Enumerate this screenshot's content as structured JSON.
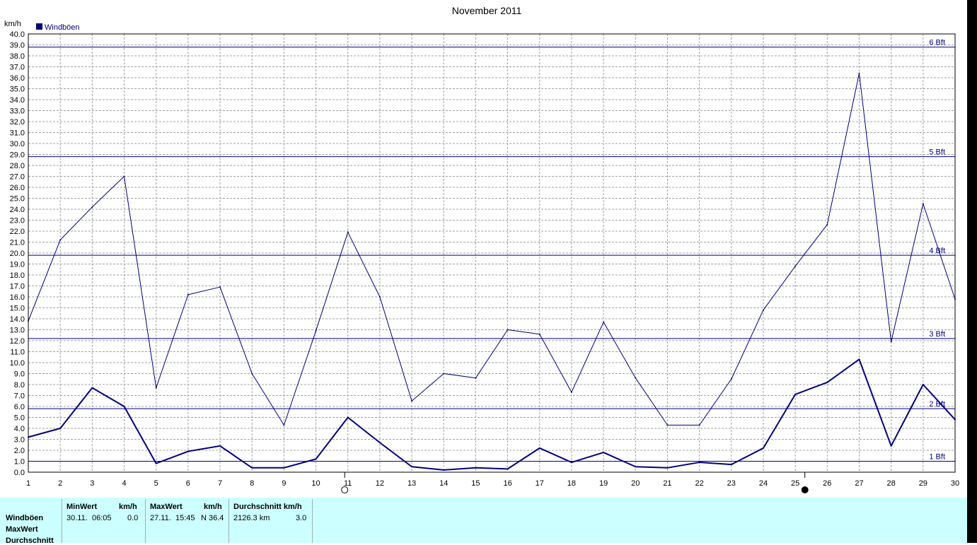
{
  "chart_data": {
    "type": "line",
    "title": "November 2011",
    "ylabel": "km/h",
    "legend": [
      {
        "name": "Windböen",
        "color": "#000080"
      }
    ],
    "legend_position": "top-left",
    "x": [
      1,
      2,
      3,
      4,
      5,
      6,
      7,
      8,
      9,
      10,
      11,
      12,
      13,
      14,
      15,
      16,
      17,
      18,
      19,
      20,
      21,
      22,
      23,
      24,
      25,
      26,
      27,
      28,
      29,
      30
    ],
    "xlim": [
      1,
      30
    ],
    "ylim": [
      0,
      40
    ],
    "y_ticks": [
      "0.0",
      "1.0",
      "2.0",
      "3.0",
      "4.0",
      "5.0",
      "6.0",
      "7.0",
      "8.0",
      "9.0",
      "10.0",
      "11.0",
      "12.0",
      "13.0",
      "14.0",
      "15.0",
      "16.0",
      "17.0",
      "18.0",
      "19.0",
      "20.0",
      "21.0",
      "22.0",
      "23.0",
      "24.0",
      "25.0",
      "26.0",
      "27.0",
      "28.0",
      "29.0",
      "30.0",
      "31.0",
      "32.0",
      "33.0",
      "34.0",
      "35.0",
      "36.0",
      "37.0",
      "38.0",
      "39.0",
      "40.0"
    ],
    "x_ticks": [
      "1",
      "2",
      "3",
      "4",
      "5",
      "6",
      "7",
      "8",
      "9",
      "10",
      "11",
      "12",
      "13",
      "14",
      "15",
      "16",
      "17",
      "18",
      "19",
      "20",
      "21",
      "22",
      "23",
      "24",
      "25",
      "26",
      "27",
      "28",
      "29",
      "30"
    ],
    "grid": true,
    "series": [
      {
        "name": "Windböen",
        "style": "thin",
        "values": [
          13.8,
          21.2,
          24.2,
          27.0,
          7.7,
          16.2,
          16.9,
          9.0,
          4.3,
          12.9,
          21.9,
          16.0,
          6.5,
          9.0,
          8.6,
          13.0,
          12.6,
          7.3,
          13.7,
          8.6,
          4.3,
          4.3,
          8.5,
          14.8,
          18.8,
          22.6,
          36.4,
          11.9,
          24.5,
          15.8
        ]
      },
      {
        "values": [
          3.2,
          4.0,
          7.7,
          6.0,
          0.8,
          1.9,
          2.4,
          0.4,
          0.4,
          1.2,
          5.0,
          2.7,
          0.5,
          0.2,
          0.4,
          0.3,
          2.2,
          0.9,
          1.8,
          0.5,
          0.4,
          0.9,
          0.7,
          2.2,
          7.1,
          8.2,
          10.3,
          2.4,
          8.0,
          4.8
        ],
        "style": "thick"
      }
    ],
    "reference_lines": [
      {
        "label": "1 Bft",
        "value": 1.0
      },
      {
        "label": "2 Bft",
        "value": 5.8
      },
      {
        "label": "3 Bft",
        "value": 12.2
      },
      {
        "label": "4 Bft",
        "value": 19.8
      },
      {
        "label": "5 Bft",
        "value": 28.8
      },
      {
        "label": "6 Bft",
        "value": 38.8
      }
    ],
    "moon_markers": [
      {
        "phase": "full-moon",
        "x": 10.9
      },
      {
        "phase": "new-moon",
        "x": 25.3
      }
    ],
    "colors": {
      "series": "#000080",
      "refline": "#000080",
      "grid": "#a0a0a0"
    }
  },
  "stats": {
    "rows": [
      "Windböen",
      "MaxWert",
      "Durchschnitt"
    ],
    "min": {
      "header": "MinWert",
      "unit": "km/h",
      "date": "30.11.",
      "time": "06:05",
      "value": "0.0"
    },
    "max": {
      "header": "MaxWert",
      "unit": "km/h",
      "date": "27.11.",
      "time": "15:45",
      "value": "N 36.4"
    },
    "avg": {
      "header": "Durchschnitt km/h",
      "distance": "2126.3 km",
      "value": "3.0"
    }
  }
}
